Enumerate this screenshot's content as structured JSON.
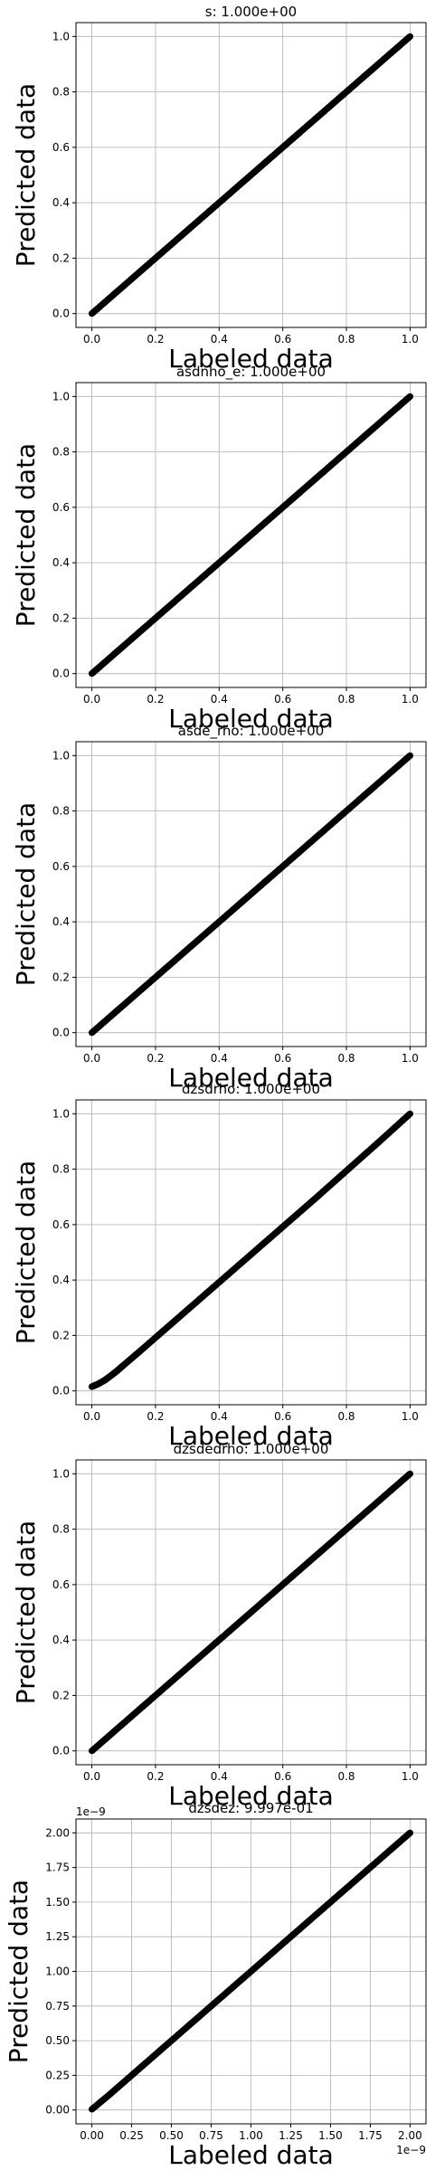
{
  "colors": {
    "background": "#ffffff",
    "grid": "#b0b0b0",
    "axes": "#000000",
    "points": "#000000"
  },
  "chart_data": [
    {
      "type": "scatter",
      "title": "s: 1.000e+00",
      "xlabel": "Labeled data",
      "ylabel": "Predicted data",
      "xlim": [
        -0.05,
        1.05
      ],
      "ylim": [
        -0.05,
        1.05
      ],
      "xticks": [
        0.0,
        0.2,
        0.4,
        0.6,
        0.8,
        1.0
      ],
      "yticks": [
        0.0,
        0.2,
        0.4,
        0.6,
        0.8,
        1.0
      ],
      "xtick_labels": [
        "0.0",
        "0.2",
        "0.4",
        "0.6",
        "0.8",
        "1.0"
      ],
      "ytick_labels": [
        "0.0",
        "0.2",
        "0.4",
        "0.6",
        "0.8",
        "1.0"
      ],
      "offset_x": "",
      "offset_y": "",
      "grid": true,
      "x": [
        0.0,
        0.05,
        0.1,
        0.15,
        0.2,
        0.25,
        0.3,
        0.35,
        0.4,
        0.45,
        0.5,
        0.55,
        0.6,
        0.65,
        0.7,
        0.75,
        0.8,
        0.85,
        0.9,
        0.95,
        1.0
      ],
      "y": [
        0.0,
        0.05,
        0.1,
        0.15,
        0.2,
        0.25,
        0.3,
        0.35,
        0.4,
        0.45,
        0.5,
        0.55,
        0.6,
        0.65,
        0.7,
        0.75,
        0.8,
        0.85,
        0.9,
        0.95,
        1.0
      ]
    },
    {
      "type": "scatter",
      "title": "asdnho_e: 1.000e+00",
      "xlabel": "Labeled data",
      "ylabel": "Predicted data",
      "xlim": [
        -0.05,
        1.05
      ],
      "ylim": [
        -0.05,
        1.05
      ],
      "xticks": [
        0.0,
        0.2,
        0.4,
        0.6,
        0.8,
        1.0
      ],
      "yticks": [
        0.0,
        0.2,
        0.4,
        0.6,
        0.8,
        1.0
      ],
      "xtick_labels": [
        "0.0",
        "0.2",
        "0.4",
        "0.6",
        "0.8",
        "1.0"
      ],
      "ytick_labels": [
        "0.0",
        "0.2",
        "0.4",
        "0.6",
        "0.8",
        "1.0"
      ],
      "offset_x": "",
      "offset_y": "",
      "grid": true,
      "x": [
        0.0,
        0.05,
        0.1,
        0.15,
        0.2,
        0.25,
        0.3,
        0.35,
        0.4,
        0.45,
        0.5,
        0.55,
        0.6,
        0.65,
        0.7,
        0.75,
        0.8,
        0.85,
        0.9,
        0.95,
        1.0
      ],
      "y": [
        0.0,
        0.05,
        0.1,
        0.15,
        0.2,
        0.25,
        0.3,
        0.35,
        0.4,
        0.45,
        0.5,
        0.55,
        0.6,
        0.65,
        0.7,
        0.75,
        0.8,
        0.85,
        0.9,
        0.95,
        1.0
      ]
    },
    {
      "type": "scatter",
      "title": "asde_rho: 1.000e+00",
      "xlabel": "Labeled data",
      "ylabel": "Predicted data",
      "xlim": [
        -0.05,
        1.05
      ],
      "ylim": [
        -0.05,
        1.05
      ],
      "xticks": [
        0.0,
        0.2,
        0.4,
        0.6,
        0.8,
        1.0
      ],
      "yticks": [
        0.0,
        0.2,
        0.4,
        0.6,
        0.8,
        1.0
      ],
      "xtick_labels": [
        "0.0",
        "0.2",
        "0.4",
        "0.6",
        "0.8",
        "1.0"
      ],
      "ytick_labels": [
        "0.0",
        "0.2",
        "0.4",
        "0.6",
        "0.8",
        "1.0"
      ],
      "offset_x": "",
      "offset_y": "",
      "grid": true,
      "x": [
        0.0,
        0.05,
        0.1,
        0.15,
        0.2,
        0.25,
        0.3,
        0.35,
        0.4,
        0.45,
        0.5,
        0.55,
        0.6,
        0.65,
        0.7,
        0.75,
        0.8,
        0.85,
        0.9,
        0.95,
        1.0
      ],
      "y": [
        0.0,
        0.05,
        0.1,
        0.15,
        0.2,
        0.25,
        0.3,
        0.35,
        0.4,
        0.45,
        0.5,
        0.55,
        0.6,
        0.65,
        0.7,
        0.75,
        0.8,
        0.85,
        0.9,
        0.95,
        1.0
      ]
    },
    {
      "type": "scatter",
      "title": "dzsdrho: 1.000e+00",
      "xlabel": "Labeled data",
      "ylabel": "Predicted data",
      "xlim": [
        -0.05,
        1.05
      ],
      "ylim": [
        -0.05,
        1.05
      ],
      "xticks": [
        0.0,
        0.2,
        0.4,
        0.6,
        0.8,
        1.0
      ],
      "yticks": [
        0.0,
        0.2,
        0.4,
        0.6,
        0.8,
        1.0
      ],
      "xtick_labels": [
        "0.0",
        "0.2",
        "0.4",
        "0.6",
        "0.8",
        "1.0"
      ],
      "ytick_labels": [
        "0.0",
        "0.2",
        "0.4",
        "0.6",
        "0.8",
        "1.0"
      ],
      "offset_x": "",
      "offset_y": "",
      "grid": true,
      "x": [
        0.0,
        0.02,
        0.04,
        0.06,
        0.08,
        0.1,
        0.15,
        0.2,
        0.25,
        0.3,
        0.35,
        0.4,
        0.45,
        0.5,
        0.55,
        0.6,
        0.65,
        0.7,
        0.75,
        0.8,
        0.85,
        0.9,
        0.95,
        1.0
      ],
      "y": [
        0.015,
        0.025,
        0.038,
        0.055,
        0.073,
        0.093,
        0.142,
        0.192,
        0.242,
        0.292,
        0.342,
        0.392,
        0.442,
        0.492,
        0.542,
        0.592,
        0.642,
        0.692,
        0.743,
        0.794,
        0.845,
        0.896,
        0.948,
        1.0
      ]
    },
    {
      "type": "scatter",
      "title": "dzsdedrho: 1.000e+00",
      "xlabel": "Labeled data",
      "ylabel": "Predicted data",
      "xlim": [
        -0.05,
        1.05
      ],
      "ylim": [
        -0.05,
        1.05
      ],
      "xticks": [
        0.0,
        0.2,
        0.4,
        0.6,
        0.8,
        1.0
      ],
      "yticks": [
        0.0,
        0.2,
        0.4,
        0.6,
        0.8,
        1.0
      ],
      "xtick_labels": [
        "0.0",
        "0.2",
        "0.4",
        "0.6",
        "0.8",
        "1.0"
      ],
      "ytick_labels": [
        "0.0",
        "0.2",
        "0.4",
        "0.6",
        "0.8",
        "1.0"
      ],
      "offset_x": "",
      "offset_y": "",
      "grid": true,
      "x": [
        0.0,
        0.05,
        0.1,
        0.15,
        0.2,
        0.25,
        0.3,
        0.35,
        0.4,
        0.45,
        0.5,
        0.55,
        0.6,
        0.65,
        0.7,
        0.75,
        0.8,
        0.85,
        0.9,
        0.95,
        1.0
      ],
      "y": [
        0.0,
        0.05,
        0.1,
        0.15,
        0.2,
        0.25,
        0.3,
        0.35,
        0.4,
        0.45,
        0.5,
        0.55,
        0.6,
        0.65,
        0.7,
        0.75,
        0.8,
        0.85,
        0.9,
        0.95,
        1.0
      ]
    },
    {
      "type": "scatter",
      "title": "dzsdez: 9.997e-01",
      "xlabel": "Labeled data",
      "ylabel": "Predicted data",
      "xlim": [
        -0.1,
        2.1
      ],
      "ylim": [
        -0.1,
        2.1
      ],
      "xticks": [
        0.0,
        0.25,
        0.5,
        0.75,
        1.0,
        1.25,
        1.5,
        1.75,
        2.0
      ],
      "yticks": [
        0.0,
        0.25,
        0.5,
        0.75,
        1.0,
        1.25,
        1.5,
        1.75,
        2.0
      ],
      "xtick_labels": [
        "0.00",
        "0.25",
        "0.50",
        "0.75",
        "1.00",
        "1.25",
        "1.50",
        "1.75",
        "2.00"
      ],
      "ytick_labels": [
        "0.00",
        "0.25",
        "0.50",
        "0.75",
        "1.00",
        "1.25",
        "1.50",
        "1.75",
        "2.00"
      ],
      "offset_x": "1e−9",
      "offset_y": "1e−9",
      "grid": true,
      "x": [
        0.0,
        0.1,
        0.2,
        0.3,
        0.4,
        0.5,
        0.6,
        0.7,
        0.8,
        0.9,
        1.0,
        1.1,
        1.2,
        1.3,
        1.4,
        1.5,
        1.6,
        1.7,
        1.8,
        1.9,
        2.0
      ],
      "y": [
        0.005,
        0.1,
        0.2,
        0.3,
        0.4,
        0.5,
        0.6,
        0.7,
        0.8,
        0.9,
        1.0,
        1.1,
        1.2,
        1.3,
        1.4,
        1.5,
        1.6,
        1.7,
        1.8,
        1.9,
        2.0
      ]
    }
  ]
}
